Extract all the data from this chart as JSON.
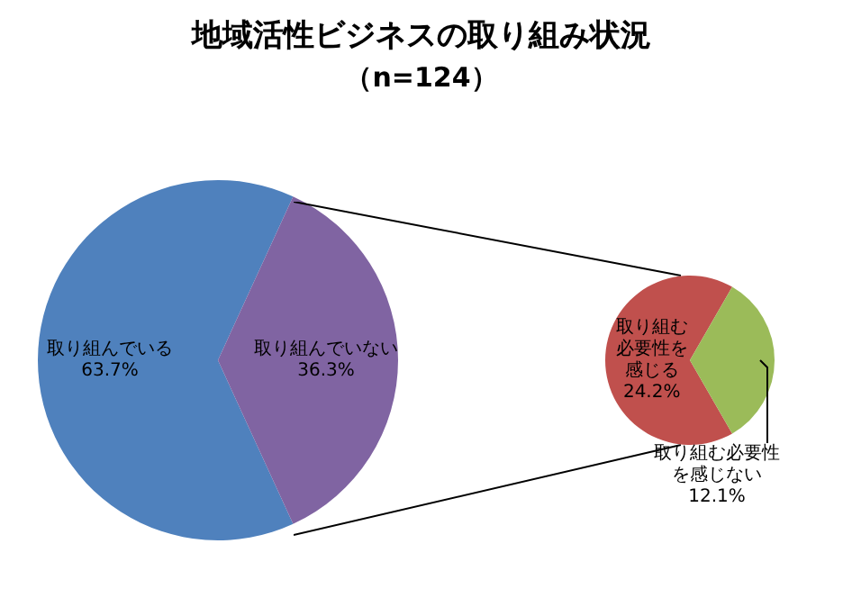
{
  "chart_data": [
    {
      "type": "pie",
      "title": "地域活性ビジネスの取り組み状況",
      "subtitle": "（n=124）",
      "categories": [
        "取り組んでいる",
        "取り組んでいない"
      ],
      "values": [
        63.7,
        36.3
      ],
      "value_labels": [
        "63.7%",
        "36.3%"
      ],
      "colors": [
        "#4f81bd",
        "#8064a2"
      ]
    },
    {
      "type": "pie",
      "categories": [
        "取り組む必要性を感じる",
        "取り組む必要性を感じない"
      ],
      "values": [
        24.2,
        12.1
      ],
      "value_labels": [
        "24.2%",
        "12.1%"
      ],
      "colors": [
        "#c0504d",
        "#9bbb59"
      ]
    }
  ]
}
